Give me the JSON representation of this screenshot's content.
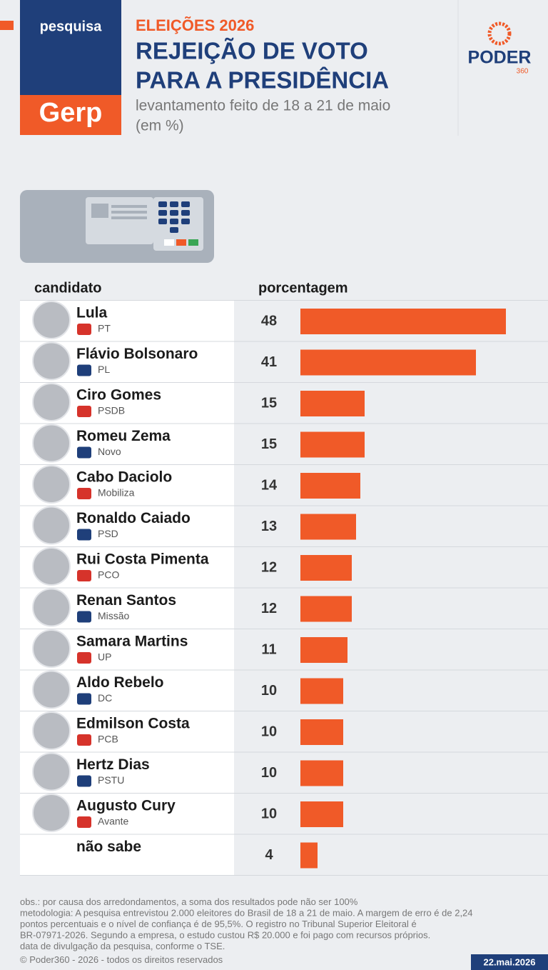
{
  "brand": {
    "tag": "pesquisa",
    "pollster": "Gerp",
    "publisher": "PODER",
    "publisher_sub": "360"
  },
  "chart_data": {
    "type": "bar",
    "kicker": "ELEIÇÕES 2026",
    "title_lines": [
      "REJEIÇÃO DE VOTO",
      "PARA A PRESIDÊNCIA"
    ],
    "subtitle_lines": [
      "levantamento feito de 18 a 21 de maio",
      "(em %)"
    ],
    "column_headers": [
      "candidato",
      "porcentagem"
    ],
    "categories": [
      "Lula",
      "Flávio Bolsonaro",
      "Ciro Gomes",
      "Romeu Zema",
      "Cabo Daciolo",
      "Ronaldo Caiado",
      "Rui Costa Pimenta",
      "Renan Santos",
      "Samara Martins",
      "Aldo Rebelo",
      "Edmilson Costa",
      "Hertz Dias",
      "Augusto Cury",
      "não sabe"
    ],
    "parties": [
      "PT",
      "PL",
      "PSDB",
      "Novo",
      "Mobiliza",
      "PSD",
      "PCO",
      "Missão",
      "UP",
      "DC",
      "PCB",
      "PSTU",
      "Avante",
      null
    ],
    "values": [
      48,
      41,
      15,
      15,
      14,
      13,
      12,
      12,
      11,
      10,
      10,
      10,
      10,
      4
    ],
    "color": "#f05a28"
  },
  "footer": {
    "notes": [
      "obs.: por causa dos arredondamentos, a soma dos resultados pode não ser 100%",
      "metodologia: A pesquisa entrevistou 2.000 eleitores do Brasil de 18 a 21 de maio. A margem de erro é de 2,24",
      "pontos percentuais e o nível de confiança é de 95,5%. O registro no Tribunal Superior Eleitoral é",
      "BR-07971-2026. Segundo a empresa, o estudo custou R$ 20.000 e foi pago com recursos próprios.",
      "data de divulgação da pesquisa, conforme o TSE."
    ],
    "credits": "© Poder360 - 2026 - todos os direitos reservados",
    "date": "22.mai.2026"
  }
}
